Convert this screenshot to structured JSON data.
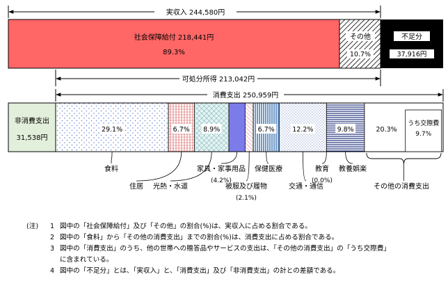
{
  "chart_data": {
    "type": "bar",
    "title": "",
    "income": {
      "label": "実収入",
      "value_text": "244,580円",
      "segments": [
        {
          "name": "社会保障給付",
          "value_text": "218,441円",
          "percent_text": "89.3%",
          "color": "#ff6666",
          "pattern": "solid"
        },
        {
          "name": "その他",
          "value_text": "",
          "percent_text": "10.7%",
          "color": "#ffffff",
          "pattern": "diagonal-hatch"
        },
        {
          "name": "不足分",
          "value_text": "37,916円",
          "percent_text": "",
          "color": "#000000",
          "pattern": "solid"
        }
      ]
    },
    "disposable": {
      "label": "可処分所得",
      "value_text": "213,042円"
    },
    "consumption": {
      "label": "消費支出",
      "value_text": "250,959円"
    },
    "non_consumption": {
      "name": "非消費支出",
      "value_text": "31,538円",
      "color": "#e2efda"
    },
    "categories": [
      {
        "name": "食料",
        "percent": 29.1,
        "percent_text": "29.1%",
        "sub": "",
        "pattern": "dots",
        "color": "#ffffff"
      },
      {
        "name": "住居",
        "percent": 6.7,
        "percent_text": "6.7%",
        "sub": "",
        "pattern": "hatch-red",
        "color": "#ffffff"
      },
      {
        "name": "光熱・水道",
        "percent": 8.9,
        "percent_text": "8.9%",
        "sub": "",
        "pattern": "hatch-teal",
        "color": "#e6f3f3"
      },
      {
        "name": "家具・家事用品",
        "percent": 4.2,
        "percent_text": "",
        "sub": "(4.2%)",
        "pattern": "solid",
        "color": "#7b7bea"
      },
      {
        "name": "被服及び履物",
        "percent": 2.1,
        "percent_text": "",
        "sub": "(2.1%)",
        "pattern": "hatch-pink",
        "color": "#ffffff"
      },
      {
        "name": "保健医療",
        "percent": 6.7,
        "percent_text": "6.7%",
        "sub": "",
        "pattern": "vstripe-blue",
        "color": "#ffffff"
      },
      {
        "name": "交通・通信",
        "percent": 12.2,
        "percent_text": "12.2%",
        "sub": "",
        "pattern": "fine-dots",
        "color": "#ffffff"
      },
      {
        "name": "教育",
        "percent": 0.0,
        "percent_text": "",
        "sub": "(0.0%)",
        "pattern": "solid",
        "color": "#ffffff"
      },
      {
        "name": "教養娯楽",
        "percent": 9.8,
        "percent_text": "9.8%",
        "sub": "",
        "pattern": "hstripe-navy",
        "color": "#ffffff"
      },
      {
        "name": "その他の消費支出",
        "percent": 20.3,
        "percent_text": "20.3%",
        "sub": "",
        "pattern": "solid",
        "color": "#ffffff",
        "inner": {
          "name": "うち交際費",
          "percent_text": "9.7%"
        }
      }
    ]
  },
  "notes": {
    "prefix": "(注)",
    "items": [
      {
        "num": "1",
        "text": "図中の「社会保障給付」及び「その他」の割合(%)は、実収入に占める割合である。"
      },
      {
        "num": "2",
        "text": "図中の「食料」から「その他の消費支出」までの割合(%)は、消費支出に占める割合である。"
      },
      {
        "num": "3",
        "text": "図中の「消費支出」のうち、他の世帯への贈答品やサービスの支出は、「その他の消費支出」の「うち交際費」",
        "cont": "に含まれている。"
      },
      {
        "num": "4",
        "text": "図中の「不足分」とは、「実収入」と、「消費支出」及び「非消費支出」の計との差額である。"
      }
    ]
  }
}
